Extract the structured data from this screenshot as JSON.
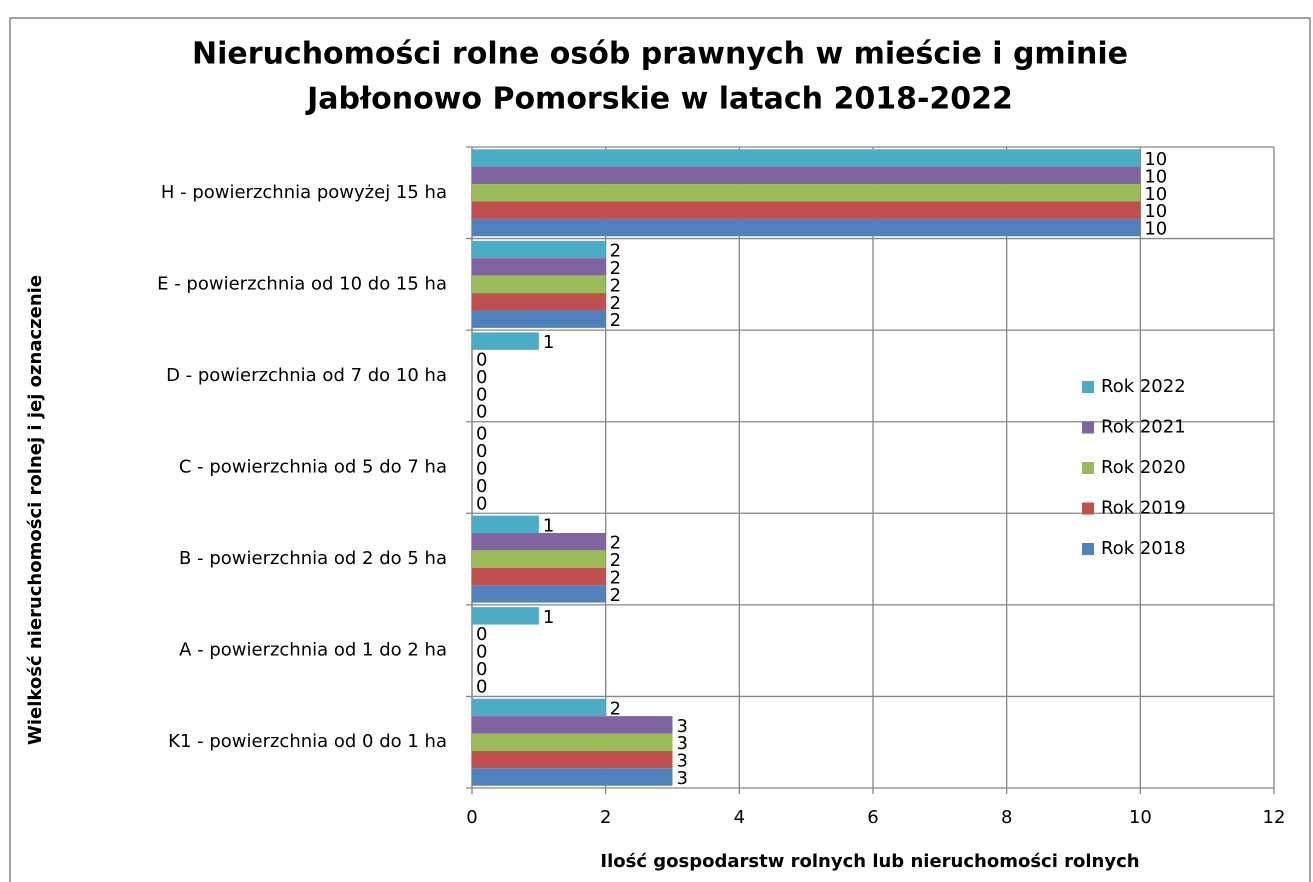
{
  "chart_data": {
    "type": "hbar",
    "title": [
      "Nieruchomości rolne osób prawnych w mieście i gminie",
      "Jabłonowo Pomorskie  w latach 2018-2022"
    ],
    "x_label": "Ilość gospodarstw rolnych lub nieruchomości rolnych",
    "y_label": "Wielkość nieruchomości rolnej i jej oznaczenie",
    "categories": [
      "H - powierzchnia powyżej 15 ha",
      "E - powierzchnia od 10 do 15 ha",
      "D - powierzchnia od 7 do 10 ha",
      "C - powierzchnia od 5 do 7 ha",
      "B - powierzchnia od 2 do 5 ha",
      "A - powierzchnia od 1 do 2 ha",
      "K1 - powierzchnia od 0 do 1 ha"
    ],
    "series": [
      {
        "name": "Rok 2022",
        "color": "#4bacc6",
        "values": [
          10,
          2,
          1,
          0,
          1,
          1,
          2
        ]
      },
      {
        "name": "Rok 2021",
        "color": "#8064a2",
        "values": [
          10,
          2,
          0,
          0,
          2,
          0,
          3
        ]
      },
      {
        "name": "Rok 2020",
        "color": "#9bbb59",
        "values": [
          10,
          2,
          0,
          0,
          2,
          0,
          3
        ]
      },
      {
        "name": "Rok 2019",
        "color": "#c0504d",
        "values": [
          10,
          2,
          0,
          0,
          2,
          0,
          3
        ]
      },
      {
        "name": "Rok 2018",
        "color": "#4f81bd",
        "values": [
          10,
          2,
          0,
          0,
          2,
          0,
          3
        ]
      }
    ],
    "xlim": [
      0,
      12
    ],
    "xticks": [
      0,
      2,
      4,
      6,
      8,
      10,
      12
    ],
    "grid": true,
    "legend": "right"
  }
}
